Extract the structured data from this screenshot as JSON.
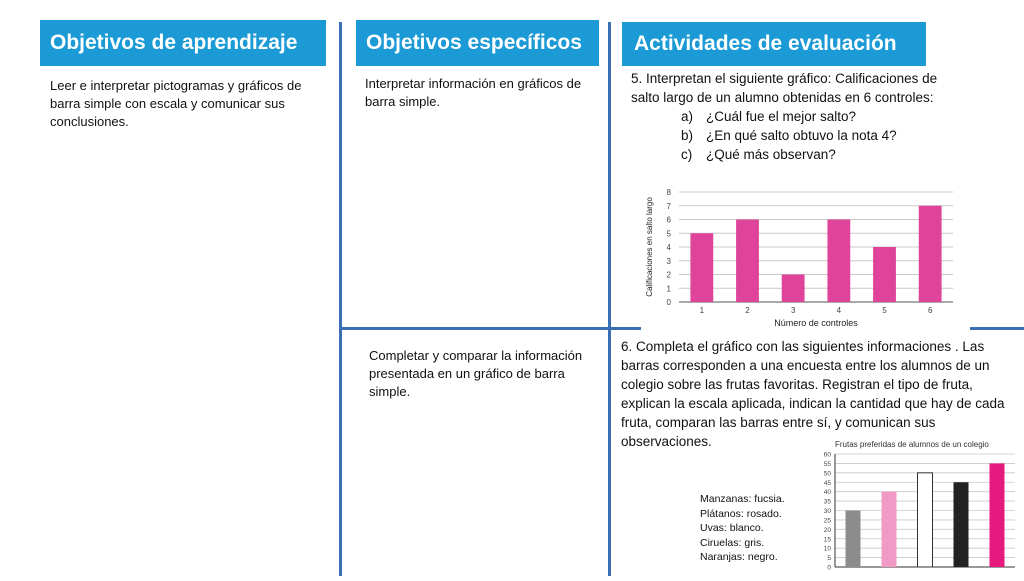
{
  "headers": {
    "learning_objectives": "Objetivos de aprendizaje",
    "specific_objectives": "Objetivos específicos",
    "evaluation_activities": "Actividades  de evaluación"
  },
  "learning_objectives_text": "Leer e interpretar pictogramas y gráficos de barra simple con escala y comunicar sus conclusiones.",
  "specific_objectives": [
    "Interpretar información en gráficos de barra simple.",
    "Completar y comparar la información presentada en un gráfico de barra simple."
  ],
  "activity5": {
    "intro": "5. Interpretan el siguiente gráfico: Calificaciones de salto largo de un alumno obtenidas en 6 controles:",
    "questions": [
      {
        "letter": "a)",
        "text": "¿Cuál fue el mejor salto?"
      },
      {
        "letter": "b)",
        "text": "¿En qué salto obtuvo la nota 4?"
      },
      {
        "letter": "c)",
        "text": "¿Qué más observan?"
      }
    ]
  },
  "activity6": {
    "text": "6. Completa el gráfico con las siguientes informaciones . Las barras corresponden a una encuesta entre los alumnos de un colegio sobre las frutas favoritas.  Registran  el tipo de fruta, explican la escala aplicada, indican la cantidad que hay de cada fruta, comparan las barras entre sí, y comunican sus observaciones."
  },
  "legend": [
    "Manzanas: fucsia.",
    "Plátanos: rosado.",
    "Uvas: blanco.",
    "Ciruelas: gris.",
    "Naranjas: negro."
  ],
  "chart_data": [
    {
      "type": "bar",
      "title": "",
      "xlabel": "Número de controles",
      "ylabel": "Calificaciones en salto largo",
      "categories": [
        "1",
        "2",
        "3",
        "4",
        "5",
        "6"
      ],
      "values": [
        5,
        6,
        2,
        6,
        4,
        7
      ],
      "ylim": [
        0,
        8
      ],
      "yticks": [
        "0",
        "1",
        "2",
        "3",
        "4",
        "5",
        "6",
        "7",
        "8"
      ],
      "grid": true,
      "colors": {
        "bar": "#e0449a",
        "grid": "#c8c8c8",
        "axis": "#555555"
      }
    },
    {
      "type": "bar",
      "title": "Frutas preferidas de alumnos de un colegio",
      "xlabel": "",
      "ylabel": "",
      "categories": [
        "",
        "",
        "",
        "",
        ""
      ],
      "values": [
        30,
        40,
        50,
        45,
        55
      ],
      "ylim": [
        0,
        60
      ],
      "yticks": [
        "0",
        "5",
        "10",
        "15",
        "20",
        "25",
        "30",
        "35",
        "40",
        "45",
        "50",
        "55",
        "60"
      ],
      "grid": true,
      "colors": {
        "bars": [
          "#8c8c8c",
          "#f29ac6",
          "#ffffff",
          "#222222",
          "#e6197f"
        ],
        "grid": "#c8c8c8",
        "axis": "#333333"
      }
    }
  ]
}
